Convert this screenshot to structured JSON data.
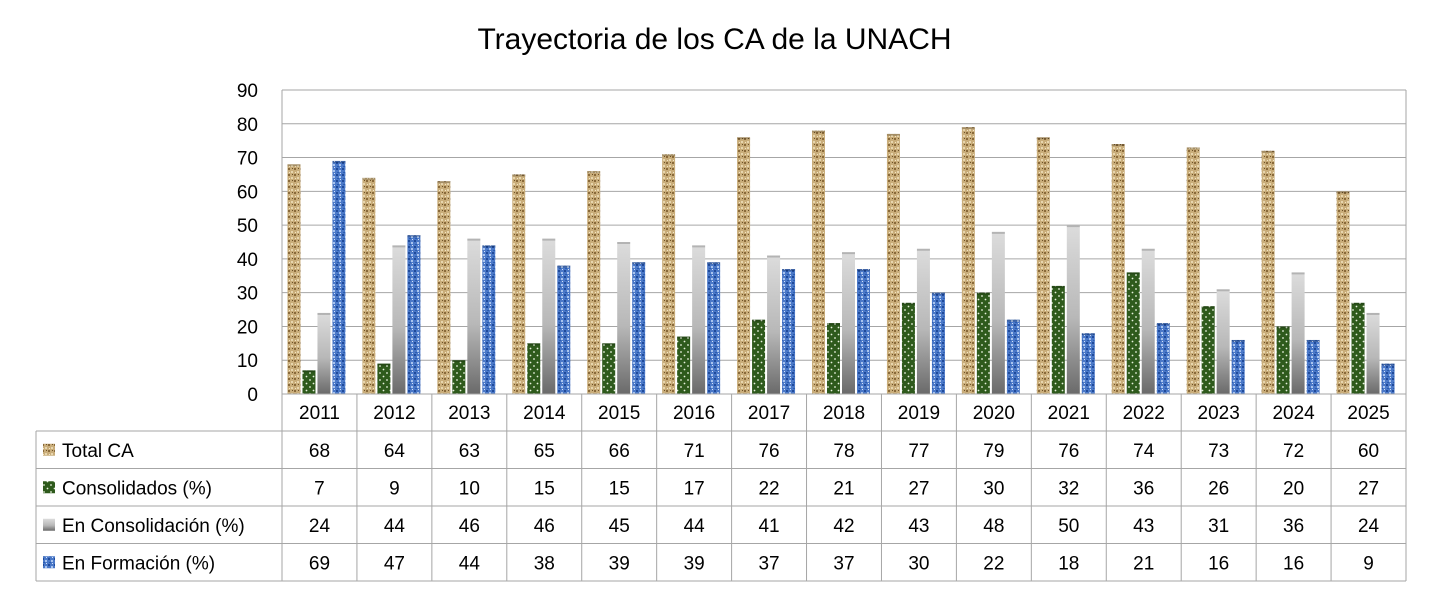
{
  "chart_data": {
    "type": "bar",
    "title": "Trayectoria de los CA de la UNACH",
    "xlabel": "",
    "ylabel": "",
    "ylim": [
      0,
      90
    ],
    "yticks": [
      0,
      10,
      20,
      30,
      40,
      50,
      60,
      70,
      80,
      90
    ],
    "grid": true,
    "legend": "data-table-left",
    "categories": [
      "2011",
      "2012",
      "2013",
      "2014",
      "2015",
      "2016",
      "2017",
      "2018",
      "2019",
      "2020",
      "2021",
      "2022",
      "2023",
      "2024",
      "2025"
    ],
    "series": [
      {
        "name": "Total CA",
        "color": "#c9ad7a",
        "pattern": "tan-texture",
        "values": [
          68,
          64,
          63,
          65,
          66,
          71,
          76,
          78,
          77,
          79,
          76,
          74,
          73,
          72,
          60
        ]
      },
      {
        "name": "Consolidados (%)",
        "color": "#2e5a1c",
        "pattern": "green-dots",
        "values": [
          7,
          9,
          10,
          15,
          15,
          17,
          22,
          21,
          27,
          30,
          32,
          36,
          26,
          20,
          27
        ]
      },
      {
        "name": "En Consolidación (%)",
        "color": "#b0b0b0",
        "pattern": "gray-gradient",
        "values": [
          24,
          44,
          46,
          46,
          45,
          44,
          41,
          42,
          43,
          48,
          50,
          43,
          31,
          36,
          24
        ]
      },
      {
        "name": "En Formación (%)",
        "color": "#4a78c8",
        "pattern": "blue-texture",
        "values": [
          69,
          47,
          44,
          38,
          39,
          39,
          37,
          37,
          30,
          22,
          18,
          21,
          16,
          16,
          9
        ]
      }
    ]
  }
}
